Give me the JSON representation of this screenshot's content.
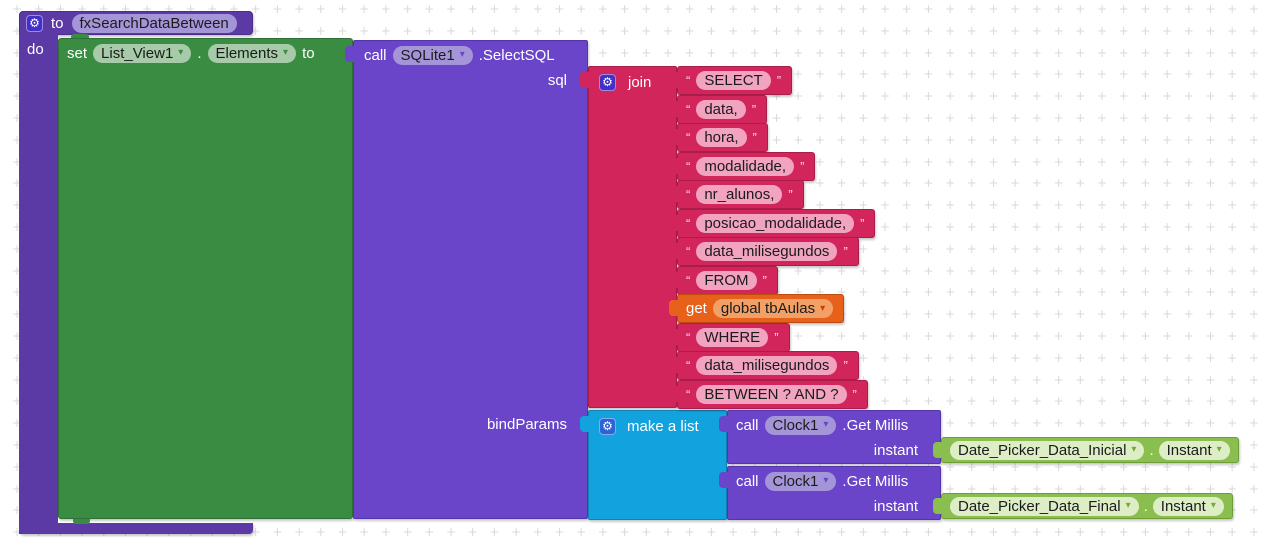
{
  "icons": {
    "gear": "⚙",
    "dropdown": "▾",
    "quote_open": "“",
    "quote_close": "”",
    "grid_plus": "+"
  },
  "colors": {
    "procedure_purple": "#5B3AA5",
    "call_violet": "#6A45C9",
    "set_green": "#3A8C43",
    "text_crimson": "#D2255C",
    "get_orange": "#E8611B",
    "list_blue": "#12A2DD",
    "component_get_green": "#8ABE4E",
    "pill_lavender": "#A495D9",
    "pill_green": "#A7CBA8",
    "pill_pink": "#F1A3C0",
    "pill_orange": "#F2A066",
    "pill_light_green": "#DDEEC6",
    "gear_bg": "#4330C9",
    "gear_bg_list": "#2B63D8",
    "grid": "#D9D9D9"
  },
  "procedure": {
    "to": "to",
    "name": "fxSearchDataBetween",
    "do": "do"
  },
  "set_block": {
    "set": "set",
    "component": "List_View1",
    "dot": ".",
    "property": "Elements",
    "to": "to"
  },
  "sql_call": {
    "call": "call",
    "component": "SQLite1",
    "method": ".SelectSQL",
    "param_sql": "sql",
    "param_bind": "bindParams"
  },
  "join_block": {
    "label": "join",
    "items": [
      {
        "type": "text",
        "value": "SELECT"
      },
      {
        "type": "text",
        "value": "data,"
      },
      {
        "type": "text",
        "value": "hora,"
      },
      {
        "type": "text",
        "value": "modalidade,"
      },
      {
        "type": "text",
        "value": "nr_alunos,"
      },
      {
        "type": "text",
        "value": "posicao_modalidade,"
      },
      {
        "type": "text",
        "value": "data_milisegundos"
      },
      {
        "type": "text",
        "value": "FROM"
      },
      {
        "type": "get",
        "label": "get",
        "value": "global tbAulas"
      },
      {
        "type": "text",
        "value": "WHERE"
      },
      {
        "type": "text",
        "value": "data_milisegundos"
      },
      {
        "type": "text",
        "value": "BETWEEN ? AND ?"
      }
    ]
  },
  "list_block": {
    "label": "make a list"
  },
  "clock_calls": [
    {
      "call": "call",
      "component": "Clock1",
      "method": ".Get Millis",
      "param": "instant",
      "arg": {
        "component": "Date_Picker_Data_Inicial",
        "dot": ".",
        "property": "Instant"
      }
    },
    {
      "call": "call",
      "component": "Clock1",
      "method": ".Get Millis",
      "param": "instant",
      "arg": {
        "component": "Date_Picker_Data_Final",
        "dot": ".",
        "property": "Instant"
      }
    }
  ]
}
